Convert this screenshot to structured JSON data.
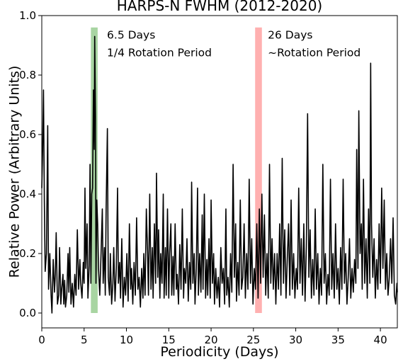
{
  "chart_data": {
    "type": "line",
    "title": "HARPS-N FWHM (2012-2020)",
    "xlabel": "Periodicity (Days)",
    "ylabel": "Relative Power (Arbitrary Units)",
    "xlim": [
      0,
      42
    ],
    "ylim": [
      -0.05,
      1.0
    ],
    "xticks": [
      0,
      5,
      10,
      15,
      20,
      25,
      30,
      35,
      40
    ],
    "yticks": [
      0.0,
      0.2,
      0.4,
      0.6,
      0.8,
      1.0
    ],
    "xtick_labels": [
      "0",
      "5",
      "10",
      "15",
      "20",
      "25",
      "30",
      "35",
      "40"
    ],
    "ytick_labels": [
      "0.0",
      "0.2",
      "0.4",
      "0.6",
      "0.8",
      "1.0"
    ],
    "grid": false,
    "line_color": "#000000",
    "highlight_bands": [
      {
        "x_range": [
          5.8,
          6.6
        ],
        "y_range": [
          0.0,
          0.96
        ],
        "color": "#a8d5a2"
      },
      {
        "x_range": [
          25.2,
          26.0
        ],
        "y_range": [
          0.0,
          0.96
        ],
        "color": "#ffb0b0"
      }
    ],
    "annotations": [
      {
        "lines": [
          "6.5 Days",
          "1/4 Rotation Period"
        ],
        "x": 7.7,
        "y": [
          0.935,
          0.875
        ]
      },
      {
        "lines": [
          "26 Days",
          "~Rotation Period"
        ],
        "x": 26.7,
        "y": [
          0.935,
          0.875
        ]
      }
    ],
    "series": [
      {
        "points": [
          [
            0.0,
            0.42
          ],
          [
            0.1,
            0.55
          ],
          [
            0.2,
            0.75
          ],
          [
            0.3,
            0.38
          ],
          [
            0.4,
            0.14
          ],
          [
            0.55,
            0.2
          ],
          [
            0.7,
            0.63
          ],
          [
            0.8,
            0.08
          ],
          [
            0.95,
            0.2
          ],
          [
            1.1,
            0.06
          ],
          [
            1.2,
            0.0
          ],
          [
            1.35,
            0.18
          ],
          [
            1.5,
            0.07
          ],
          [
            1.6,
            0.13
          ],
          [
            1.7,
            0.27
          ],
          [
            1.85,
            0.03
          ],
          [
            2.0,
            0.06
          ],
          [
            2.1,
            0.22
          ],
          [
            2.25,
            0.03
          ],
          [
            2.35,
            0.08
          ],
          [
            2.5,
            0.13
          ],
          [
            2.6,
            0.03
          ],
          [
            2.7,
            0.11
          ],
          [
            2.8,
            0.02
          ],
          [
            2.95,
            0.06
          ],
          [
            3.1,
            0.2
          ],
          [
            3.2,
            0.07
          ],
          [
            3.3,
            0.22
          ],
          [
            3.45,
            0.03
          ],
          [
            3.6,
            0.1
          ],
          [
            3.75,
            0.02
          ],
          [
            3.9,
            0.13
          ],
          [
            4.05,
            0.06
          ],
          [
            4.2,
            0.28
          ],
          [
            4.35,
            0.08
          ],
          [
            4.5,
            0.18
          ],
          [
            4.6,
            0.1
          ],
          [
            4.75,
            0.05
          ],
          [
            4.9,
            0.17
          ],
          [
            5.0,
            0.1
          ],
          [
            5.1,
            0.42
          ],
          [
            5.2,
            0.15
          ],
          [
            5.35,
            0.3
          ],
          [
            5.45,
            0.05
          ],
          [
            5.6,
            0.16
          ],
          [
            5.7,
            0.5
          ],
          [
            5.8,
            0.1
          ],
          [
            5.9,
            0.4
          ],
          [
            6.0,
            0.42
          ],
          [
            6.1,
            0.75
          ],
          [
            6.2,
            0.55
          ],
          [
            6.25,
            0.93
          ],
          [
            6.35,
            0.65
          ],
          [
            6.4,
            0.1
          ],
          [
            6.5,
            0.38
          ],
          [
            6.6,
            0.3
          ],
          [
            6.7,
            0.15
          ],
          [
            6.85,
            0.06
          ],
          [
            7.0,
            0.2
          ],
          [
            7.15,
            0.35
          ],
          [
            7.25,
            0.1
          ],
          [
            7.4,
            0.22
          ],
          [
            7.5,
            0.06
          ],
          [
            7.6,
            0.35
          ],
          [
            7.75,
            0.62
          ],
          [
            7.85,
            0.12
          ],
          [
            8.0,
            0.06
          ],
          [
            8.1,
            0.2
          ],
          [
            8.25,
            0.03
          ],
          [
            8.4,
            0.1
          ],
          [
            8.5,
            0.22
          ],
          [
            8.65,
            0.04
          ],
          [
            8.8,
            0.15
          ],
          [
            8.95,
            0.42
          ],
          [
            9.05,
            0.1
          ],
          [
            9.2,
            0.17
          ],
          [
            9.3,
            0.05
          ],
          [
            9.45,
            0.25
          ],
          [
            9.6,
            0.02
          ],
          [
            9.75,
            0.12
          ],
          [
            9.9,
            0.06
          ],
          [
            10.05,
            0.2
          ],
          [
            10.2,
            0.04
          ],
          [
            10.35,
            0.3
          ],
          [
            10.5,
            0.08
          ],
          [
            10.6,
            0.15
          ],
          [
            10.75,
            0.03
          ],
          [
            10.9,
            0.17
          ],
          [
            11.05,
            0.06
          ],
          [
            11.2,
            0.32
          ],
          [
            11.35,
            0.08
          ],
          [
            11.5,
            0.12
          ],
          [
            11.65,
            0.02
          ],
          [
            11.8,
            0.15
          ],
          [
            11.95,
            0.05
          ],
          [
            12.05,
            0.2
          ],
          [
            12.2,
            0.06
          ],
          [
            12.35,
            0.35
          ],
          [
            12.5,
            0.2
          ],
          [
            12.6,
            0.06
          ],
          [
            12.75,
            0.4
          ],
          [
            12.9,
            0.08
          ],
          [
            13.05,
            0.22
          ],
          [
            13.15,
            0.05
          ],
          [
            13.3,
            0.3
          ],
          [
            13.45,
            0.1
          ],
          [
            13.55,
            0.47
          ],
          [
            13.7,
            0.12
          ],
          [
            13.8,
            0.28
          ],
          [
            13.95,
            0.05
          ],
          [
            14.05,
            0.2
          ],
          [
            14.2,
            0.1
          ],
          [
            14.35,
            0.4
          ],
          [
            14.45,
            0.05
          ],
          [
            14.6,
            0.22
          ],
          [
            14.7,
            0.06
          ],
          [
            14.85,
            0.35
          ],
          [
            15.0,
            0.05
          ],
          [
            15.1,
            0.2
          ],
          [
            15.25,
            0.3
          ],
          [
            15.35,
            0.06
          ],
          [
            15.5,
            0.19
          ],
          [
            15.6,
            0.06
          ],
          [
            15.75,
            0.3
          ],
          [
            15.9,
            0.08
          ],
          [
            16.0,
            0.13
          ],
          [
            16.15,
            0.03
          ],
          [
            16.3,
            0.23
          ],
          [
            16.45,
            0.08
          ],
          [
            16.6,
            0.35
          ],
          [
            16.75,
            0.05
          ],
          [
            16.85,
            0.15
          ],
          [
            17.0,
            0.1
          ],
          [
            17.15,
            0.25
          ],
          [
            17.3,
            0.04
          ],
          [
            17.45,
            0.17
          ],
          [
            17.6,
            0.08
          ],
          [
            17.7,
            0.44
          ],
          [
            17.85,
            0.1
          ],
          [
            18.0,
            0.2
          ],
          [
            18.1,
            0.03
          ],
          [
            18.25,
            0.15
          ],
          [
            18.4,
            0.42
          ],
          [
            18.5,
            0.06
          ],
          [
            18.65,
            0.2
          ],
          [
            18.8,
            0.07
          ],
          [
            18.95,
            0.33
          ],
          [
            19.05,
            0.08
          ],
          [
            19.2,
            0.4
          ],
          [
            19.35,
            0.05
          ],
          [
            19.5,
            0.18
          ],
          [
            19.6,
            0.06
          ],
          [
            19.75,
            0.25
          ],
          [
            19.9,
            0.05
          ],
          [
            20.0,
            0.38
          ],
          [
            20.15,
            0.1
          ],
          [
            20.3,
            0.2
          ],
          [
            20.4,
            0.03
          ],
          [
            20.55,
            0.15
          ],
          [
            20.7,
            0.05
          ],
          [
            20.85,
            0.12
          ],
          [
            21.0,
            0.02
          ],
          [
            21.15,
            0.22
          ],
          [
            21.3,
            0.1
          ],
          [
            21.45,
            0.15
          ],
          [
            21.6,
            0.03
          ],
          [
            21.75,
            0.35
          ],
          [
            21.85,
            0.06
          ],
          [
            22.0,
            0.12
          ],
          [
            22.15,
            0.02
          ],
          [
            22.3,
            0.2
          ],
          [
            22.45,
            0.07
          ],
          [
            22.6,
            0.5
          ],
          [
            22.75,
            0.12
          ],
          [
            22.9,
            0.3
          ],
          [
            23.0,
            0.04
          ],
          [
            23.15,
            0.17
          ],
          [
            23.3,
            0.06
          ],
          [
            23.45,
            0.38
          ],
          [
            23.6,
            0.08
          ],
          [
            23.75,
            0.12
          ],
          [
            23.9,
            0.3
          ],
          [
            24.05,
            0.05
          ],
          [
            24.2,
            0.2
          ],
          [
            24.35,
            0.08
          ],
          [
            24.5,
            0.45
          ],
          [
            24.65,
            0.1
          ],
          [
            24.8,
            0.25
          ],
          [
            24.95,
            0.03
          ],
          [
            25.1,
            0.15
          ],
          [
            25.25,
            0.08
          ],
          [
            25.4,
            0.3
          ],
          [
            25.55,
            0.05
          ],
          [
            25.7,
            0.35
          ],
          [
            25.85,
            0.1
          ],
          [
            26.0,
            0.4
          ],
          [
            26.15,
            0.12
          ],
          [
            26.3,
            0.33
          ],
          [
            26.45,
            0.06
          ],
          [
            26.6,
            0.2
          ],
          [
            26.75,
            0.05
          ],
          [
            26.9,
            0.5
          ],
          [
            27.05,
            0.1
          ],
          [
            27.2,
            0.25
          ],
          [
            27.35,
            0.08
          ],
          [
            27.5,
            0.2
          ],
          [
            27.65,
            0.03
          ],
          [
            27.8,
            0.2
          ],
          [
            27.95,
            0.08
          ],
          [
            28.1,
            0.3
          ],
          [
            28.25,
            0.06
          ],
          [
            28.4,
            0.52
          ],
          [
            28.55,
            0.1
          ],
          [
            28.7,
            0.28
          ],
          [
            28.85,
            0.05
          ],
          [
            29.0,
            0.18
          ],
          [
            29.15,
            0.3
          ],
          [
            29.3,
            0.06
          ],
          [
            29.45,
            0.38
          ],
          [
            29.6,
            0.08
          ],
          [
            29.75,
            0.2
          ],
          [
            29.9,
            0.05
          ],
          [
            30.05,
            0.15
          ],
          [
            30.2,
            0.08
          ],
          [
            30.35,
            0.42
          ],
          [
            30.5,
            0.1
          ],
          [
            30.65,
            0.25
          ],
          [
            30.8,
            0.06
          ],
          [
            30.95,
            0.3
          ],
          [
            31.1,
            0.04
          ],
          [
            31.25,
            0.22
          ],
          [
            31.4,
            0.67
          ],
          [
            31.55,
            0.12
          ],
          [
            31.7,
            0.28
          ],
          [
            31.85,
            0.05
          ],
          [
            32.0,
            0.18
          ],
          [
            32.15,
            0.06
          ],
          [
            32.3,
            0.35
          ],
          [
            32.45,
            0.08
          ],
          [
            32.6,
            0.2
          ],
          [
            32.75,
            0.03
          ],
          [
            32.9,
            0.15
          ],
          [
            33.05,
            0.06
          ],
          [
            33.2,
            0.5
          ],
          [
            33.35,
            0.1
          ],
          [
            33.5,
            0.2
          ],
          [
            33.65,
            0.03
          ],
          [
            33.8,
            0.13
          ],
          [
            33.95,
            0.06
          ],
          [
            34.1,
            0.45
          ],
          [
            34.25,
            0.08
          ],
          [
            34.4,
            0.2
          ],
          [
            34.55,
            0.05
          ],
          [
            34.7,
            0.3
          ],
          [
            34.85,
            0.08
          ],
          [
            35.0,
            0.15
          ],
          [
            35.15,
            0.03
          ],
          [
            35.3,
            0.22
          ],
          [
            35.45,
            0.08
          ],
          [
            35.6,
            0.45
          ],
          [
            35.75,
            0.1
          ],
          [
            35.9,
            0.2
          ],
          [
            36.05,
            0.03
          ],
          [
            36.2,
            0.12
          ],
          [
            36.35,
            0.25
          ],
          [
            36.5,
            0.05
          ],
          [
            36.65,
            0.15
          ],
          [
            36.8,
            0.07
          ],
          [
            36.95,
            0.18
          ],
          [
            37.1,
            0.1
          ],
          [
            37.2,
            0.55
          ],
          [
            37.35,
            0.15
          ],
          [
            37.45,
            0.68
          ],
          [
            37.6,
            0.2
          ],
          [
            37.75,
            0.3
          ],
          [
            37.85,
            0.08
          ],
          [
            38.0,
            0.45
          ],
          [
            38.15,
            0.1
          ],
          [
            38.3,
            0.25
          ],
          [
            38.45,
            0.05
          ],
          [
            38.6,
            0.35
          ],
          [
            38.75,
            0.1
          ],
          [
            38.85,
            0.84
          ],
          [
            38.95,
            0.3
          ],
          [
            39.1,
            0.12
          ],
          [
            39.25,
            0.25
          ],
          [
            39.4,
            0.05
          ],
          [
            39.55,
            0.18
          ],
          [
            39.7,
            0.08
          ],
          [
            39.85,
            0.3
          ],
          [
            40.0,
            0.1
          ],
          [
            40.15,
            0.42
          ],
          [
            40.3,
            0.15
          ],
          [
            40.45,
            0.38
          ],
          [
            40.6,
            0.08
          ],
          [
            40.75,
            0.2
          ],
          [
            40.9,
            0.06
          ],
          [
            41.05,
            0.12
          ],
          [
            41.2,
            0.25
          ],
          [
            41.35,
            0.1
          ],
          [
            41.5,
            0.32
          ],
          [
            41.65,
            0.06
          ],
          [
            41.8,
            0.03
          ],
          [
            41.95,
            0.1
          ],
          [
            42.0,
            0.07
          ]
        ]
      }
    ]
  }
}
